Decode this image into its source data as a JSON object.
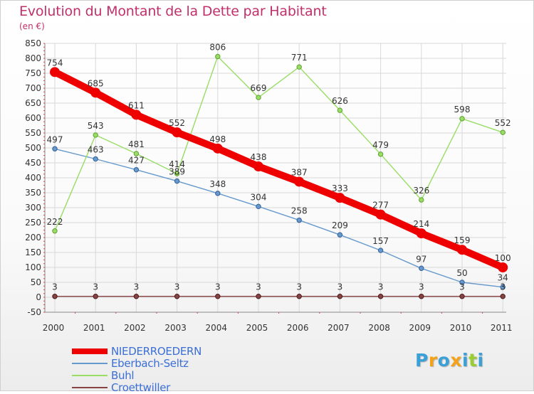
{
  "header": {
    "title": "Evolution du Montant de la Dette par Habitant",
    "subtitle": "(en €)"
  },
  "logo": {
    "text": "Proxiti",
    "letter_colors": [
      "#3aa0d8",
      "#f4a21a",
      "#3aa0d8",
      "#f4a21a",
      "#3aa0d8",
      "#9acd32",
      "#3aa0d8"
    ]
  },
  "chart_data": {
    "type": "line",
    "x": [
      "2000",
      "2001",
      "2002",
      "2003",
      "2004",
      "2005",
      "2006",
      "2007",
      "2008",
      "2009",
      "2010",
      "2011"
    ],
    "ylim": [
      -50,
      850
    ],
    "yticks": [
      -50,
      0,
      50,
      100,
      150,
      200,
      250,
      300,
      350,
      400,
      450,
      500,
      550,
      600,
      650,
      700,
      750,
      800,
      850
    ],
    "grid": true,
    "legend_position": "bottom-left",
    "series": [
      {
        "name": "NIEDERROEDERN",
        "color": "#ee0000",
        "emphasis": true,
        "values": [
          754,
          685,
          611,
          552,
          498,
          438,
          387,
          333,
          277,
          214,
          159,
          100
        ]
      },
      {
        "name": "Eberbach-Seltz",
        "color": "#6699cc",
        "emphasis": false,
        "values": [
          497,
          463,
          427,
          389,
          348,
          304,
          258,
          209,
          157,
          97,
          50,
          34
        ]
      },
      {
        "name": "Buhl",
        "color": "#99dd66",
        "emphasis": false,
        "values": [
          222,
          543,
          481,
          414,
          806,
          669,
          771,
          626,
          479,
          326,
          598,
          552
        ]
      },
      {
        "name": "Croettwiller",
        "color": "#884444",
        "emphasis": false,
        "values": [
          3,
          3,
          3,
          3,
          3,
          3,
          3,
          3,
          3,
          3,
          3,
          3
        ]
      }
    ]
  }
}
